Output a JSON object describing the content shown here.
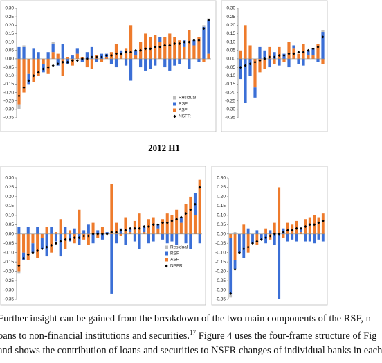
{
  "title": "2012 H1",
  "text": [
    "Further insight can be gained from the breakdown of the two main components of the RSF, n",
    [
      "oans to non-financial institutions and securities.",
      "17",
      " Figure 4 uses the four-frame structure of Fig"
    ],
    "and shows the contribution of loans and securities to NSFR changes of individual banks in each"
  ],
  "chart_data": [
    {
      "type": "bar",
      "stacked": true,
      "legend": "lower right",
      "ylim": [
        -0.35,
        0.3
      ],
      "yticks": [
        {
          "value": 0.3,
          "label": "0.30"
        },
        {
          "value": 0.25,
          "label": "0.25"
        },
        {
          "value": 0.2,
          "label": "0.20"
        },
        {
          "value": 0.15,
          "label": "0.15"
        },
        {
          "value": 0.1,
          "label": "0.10"
        },
        {
          "value": 0.05,
          "label": "0.05"
        },
        {
          "value": 0,
          "label": "0.00"
        },
        {
          "value": -0.05,
          "label": "-0.05"
        },
        {
          "value": -0.1,
          "label": "-0.10"
        },
        {
          "value": -0.15,
          "label": "-0.15"
        },
        {
          "value": -0.2,
          "label": "-0.20"
        },
        {
          "value": -0.25,
          "label": "-0.25"
        },
        {
          "value": -0.3,
          "label": "-0.30"
        },
        {
          "value": -0.35,
          "label": "-0.35"
        }
      ],
      "series": [
        {
          "name": "Residual",
          "color": "#bdbdbd",
          "values": [
            -0.03,
            0.01,
            0,
            0,
            0,
            0,
            0,
            0.01,
            0,
            0,
            0,
            0,
            0,
            0,
            0,
            0,
            0,
            0,
            0,
            0,
            0,
            0,
            0,
            0,
            0,
            0,
            0,
            0,
            0,
            0,
            0,
            0,
            0,
            0,
            0,
            0,
            0,
            0,
            0.01,
            0.01
          ]
        },
        {
          "name": "RSF",
          "color": "#3b6fd6",
          "values": [
            0.07,
            0.07,
            -0.06,
            0.06,
            0.04,
            -0.05,
            0.04,
            0.05,
            -0.04,
            0.09,
            -0.03,
            0.02,
            0.03,
            -0.02,
            0.04,
            0.07,
            -0.02,
            0.03,
            0.02,
            -0.03,
            -0.05,
            0.02,
            -0.04,
            -0.13,
            0.03,
            -0.05,
            -0.07,
            -0.06,
            -0.04,
            0.03,
            -0.05,
            -0.07,
            -0.04,
            -0.03,
            0.04,
            -0.06,
            0.03,
            -0.02,
            0.19,
            0.2
          ]
        },
        {
          "name": "ASF",
          "color": "#ee7b2c",
          "values": [
            -0.27,
            -0.2,
            -0.09,
            -0.14,
            -0.1,
            -0.03,
            -0.09,
            0.04,
            0.03,
            -0.1,
            0.01,
            -0.04,
            0.03,
            0.01,
            -0.05,
            -0.06,
            0.02,
            -0.02,
            0.01,
            0.04,
            0.09,
            0.03,
            0.06,
            0.2,
            0.02,
            0.1,
            0.15,
            0.13,
            0.14,
            0.1,
            0.13,
            0.15,
            0.13,
            0.11,
            0.07,
            0.17,
            0.08,
            0.13,
            -0.02,
            0.03
          ]
        },
        {
          "name": "NSFR",
          "color": "#000000",
          "type": "marker",
          "values": [
            -0.22,
            -0.17,
            -0.13,
            -0.1,
            -0.08,
            -0.06,
            -0.05,
            -0.04,
            -0.03,
            -0.02,
            -0.02,
            -0.01,
            -0.01,
            0,
            0,
            0.01,
            0.01,
            0.01,
            0.02,
            0.02,
            0.03,
            0.03,
            0.04,
            0.04,
            0.05,
            0.05,
            0.06,
            0.06,
            0.07,
            0.07,
            0.08,
            0.08,
            0.09,
            0.09,
            0.1,
            0.1,
            0.11,
            0.11,
            0.18,
            0.23
          ]
        }
      ]
    },
    {
      "type": "bar",
      "stacked": true,
      "ylim": [
        -0.35,
        0.3
      ],
      "yticks": [
        {
          "value": 0.3,
          "label": "0.30"
        },
        {
          "value": 0.25,
          "label": "0.25"
        },
        {
          "value": 0.2,
          "label": "0.20"
        },
        {
          "value": 0.15,
          "label": "0.15"
        },
        {
          "value": 0.1,
          "label": "0.10"
        },
        {
          "value": 0.05,
          "label": "0.05"
        },
        {
          "value": 0,
          "label": "0.00"
        },
        {
          "value": -0.05,
          "label": "-0.05"
        },
        {
          "value": -0.1,
          "label": "-0.10"
        },
        {
          "value": -0.15,
          "label": "-0.15"
        },
        {
          "value": -0.2,
          "label": "-0.20"
        },
        {
          "value": -0.25,
          "label": "-0.25"
        },
        {
          "value": -0.3,
          "label": "-0.30"
        },
        {
          "value": -0.35,
          "label": "-0.35"
        }
      ],
      "series": [
        {
          "color": "#bdbdbd",
          "values": [
            0,
            0,
            0,
            0,
            0,
            0,
            0,
            0,
            0,
            0,
            0,
            0,
            0,
            0,
            0,
            0,
            0,
            0.01
          ]
        },
        {
          "color": "#3b6fd6",
          "values": [
            -0.12,
            -0.26,
            -0.1,
            -0.06,
            0.07,
            0.05,
            -0.05,
            0.04,
            -0.04,
            0.03,
            -0.05,
            0.02,
            -0.03,
            -0.04,
            0.03,
            0.04,
            -0.02,
            0.16
          ]
        },
        {
          "color": "#ee7b2c",
          "values": [
            0.05,
            0.2,
            0.08,
            -0.17,
            -0.08,
            -0.06,
            0.07,
            -0.03,
            0.07,
            -0.02,
            0.1,
            0.06,
            0.03,
            0.09,
            0.02,
            0.02,
            0.09,
            -0.03
          ]
        },
        {
          "color": "#000000",
          "type": "marker",
          "values": [
            -0.05,
            -0.04,
            -0.03,
            -0.02,
            -0.01,
            0,
            0.01,
            0.01,
            0.02,
            0.02,
            0.03,
            0.03,
            0.04,
            0.04,
            0.05,
            0.06,
            0.07,
            0.13
          ]
        }
      ]
    },
    {
      "type": "bar",
      "stacked": true,
      "legend": "lower right",
      "ylim": [
        -0.35,
        0.3
      ],
      "yticks": [
        {
          "value": 0.3,
          "label": "0.30"
        },
        {
          "value": 0.25,
          "label": "0.25"
        },
        {
          "value": 0.2,
          "label": "0.20"
        },
        {
          "value": 0.15,
          "label": "0.15"
        },
        {
          "value": 0.1,
          "label": "0.10"
        },
        {
          "value": 0.05,
          "label": "0.05"
        },
        {
          "value": 0,
          "label": "0.00"
        },
        {
          "value": -0.05,
          "label": "-0.05"
        },
        {
          "value": -0.1,
          "label": "-0.10"
        },
        {
          "value": -0.15,
          "label": "-0.15"
        },
        {
          "value": -0.2,
          "label": "-0.20"
        },
        {
          "value": -0.25,
          "label": "-0.25"
        },
        {
          "value": -0.3,
          "label": "-0.30"
        },
        {
          "value": -0.35,
          "label": "-0.35"
        }
      ],
      "series": [
        {
          "name": "Residual",
          "color": "#bdbdbd",
          "values": [
            -0.01,
            0,
            0,
            0,
            0,
            0,
            0,
            0,
            0,
            0,
            0,
            0,
            0,
            0,
            0,
            0,
            0,
            0,
            0,
            0,
            0,
            0,
            0,
            0,
            0,
            0,
            0,
            0,
            0,
            0,
            0,
            0,
            0,
            0,
            0,
            0,
            0,
            0,
            0,
            0
          ]
        },
        {
          "name": "RSF",
          "color": "#3b6fd6",
          "values": [
            0.04,
            -0.04,
            0.04,
            -0.05,
            0.04,
            -0.06,
            -0.12,
            0.04,
            -0.04,
            -0.12,
            0.04,
            -0.04,
            0.03,
            -0.06,
            0.02,
            0.05,
            -0.05,
            0.02,
            -0.03,
            0.01,
            -0.32,
            -0.05,
            0.03,
            -0.06,
            0.02,
            -0.04,
            -0.08,
            0.03,
            -0.05,
            -0.04,
            0.02,
            -0.03,
            -0.05,
            -0.04,
            -0.06,
            0.03,
            -0.05,
            -0.08,
            0.12,
            -0.05
          ]
        },
        {
          "name": "ASF",
          "color": "#ee7b2c",
          "values": [
            -0.2,
            -0.1,
            -0.14,
            -0.05,
            -0.13,
            -0.02,
            0.04,
            -0.1,
            0.01,
            0.08,
            -0.08,
            0.02,
            -0.05,
            0.13,
            -0.03,
            -0.06,
            0.06,
            -0.02,
            0.04,
            0,
            0.27,
            0.06,
            -0.01,
            0.09,
            0.01,
            0.07,
            0.11,
            0.01,
            0.08,
            0.09,
            0.03,
            0.08,
            0.11,
            0.1,
            0.13,
            0.06,
            0.16,
            0.2,
            0.1,
            0.29
          ]
        },
        {
          "name": "NSFR",
          "color": "#000000",
          "type": "marker",
          "values": [
            -0.17,
            -0.13,
            -0.11,
            -0.1,
            -0.09,
            -0.08,
            -0.07,
            -0.06,
            -0.05,
            -0.04,
            -0.03,
            -0.03,
            -0.02,
            -0.02,
            -0.01,
            -0.01,
            0,
            0,
            0,
            0,
            0.01,
            0.01,
            0.02,
            0.02,
            0.03,
            0.03,
            0.03,
            0.04,
            0.04,
            0.05,
            0.05,
            0.06,
            0.06,
            0.07,
            0.08,
            0.09,
            0.11,
            0.13,
            0.16,
            0.25
          ]
        }
      ]
    },
    {
      "type": "bar",
      "stacked": true,
      "ylim": [
        -0.35,
        0.3
      ],
      "yticks": [
        {
          "value": 0.3,
          "label": "0.30"
        },
        {
          "value": 0.25,
          "label": "0.25"
        },
        {
          "value": 0.2,
          "label": "0.20"
        },
        {
          "value": 0.15,
          "label": "0.15"
        },
        {
          "value": 0.1,
          "label": "0.10"
        },
        {
          "value": 0.05,
          "label": "0.05"
        },
        {
          "value": 0,
          "label": "0.00"
        },
        {
          "value": -0.05,
          "label": "-0.05"
        },
        {
          "value": -0.1,
          "label": "-0.10"
        },
        {
          "value": -0.15,
          "label": "-0.15"
        },
        {
          "value": -0.2,
          "label": "-0.20"
        },
        {
          "value": -0.25,
          "label": "-0.25"
        },
        {
          "value": -0.3,
          "label": "-0.30"
        },
        {
          "value": -0.35,
          "label": "-0.35"
        }
      ],
      "series": [
        {
          "color": "#bdbdbd",
          "values": [
            -0.02,
            0.01,
            0,
            0,
            0,
            0,
            0,
            0,
            0,
            0,
            0,
            0,
            0,
            0,
            0,
            0,
            0,
            0,
            0,
            0,
            0,
            0
          ]
        },
        {
          "color": "#3b6fd6",
          "values": [
            -0.3,
            -0.05,
            -0.1,
            -0.13,
            0.03,
            -0.05,
            0.02,
            -0.03,
            -0.05,
            0.02,
            -0.06,
            -0.35,
            0.03,
            -0.04,
            -0.03,
            -0.04,
            0.02,
            -0.04,
            -0.04,
            -0.05,
            -0.03,
            -0.04
          ]
        },
        {
          "color": "#ee7b2c",
          "values": [
            -0.02,
            -0.14,
            0,
            0.05,
            -0.1,
            0,
            -0.06,
            0,
            0.03,
            -0.03,
            0.06,
            0.25,
            -0.02,
            0.06,
            0.05,
            0.07,
            0.01,
            0.08,
            0.09,
            0.1,
            0.09,
            0.11
          ]
        },
        {
          "color": "#000000",
          "type": "marker",
          "values": [
            -0.32,
            -0.19,
            -0.1,
            -0.08,
            -0.07,
            -0.05,
            -0.04,
            -0.03,
            -0.02,
            -0.01,
            0,
            0,
            0.01,
            0.02,
            0.02,
            0.03,
            0.03,
            0.04,
            0.05,
            0.05,
            0.06,
            0.07
          ]
        }
      ]
    }
  ]
}
